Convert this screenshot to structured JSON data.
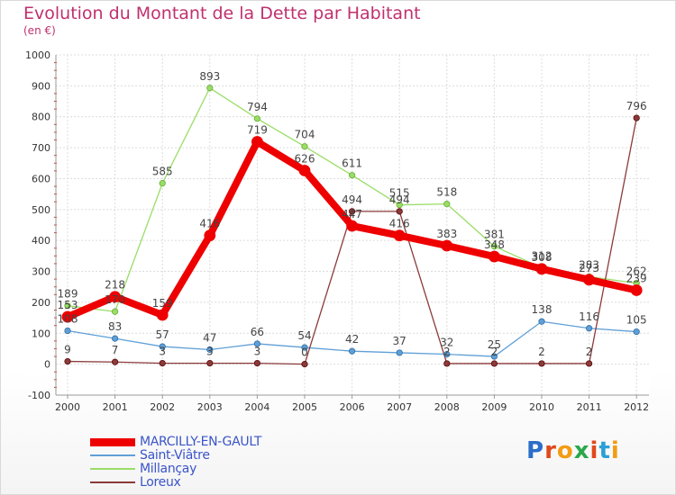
{
  "header": {
    "title": "Evolution du Montant de la Dette par Habitant",
    "subtitle": "(en €)"
  },
  "logo": {
    "text": "Proxiti"
  },
  "chart_data": {
    "type": "line",
    "title": "Evolution du Montant de la Dette par Habitant",
    "subtitle": "(en €)",
    "xlabel": "",
    "ylabel": "",
    "x": [
      "2000",
      "2001",
      "2002",
      "2003",
      "2004",
      "2005",
      "2006",
      "2007",
      "2008",
      "2009",
      "2010",
      "2011",
      "2012"
    ],
    "ylim": [
      -100,
      1000
    ],
    "yticks": [
      "-100",
      "0",
      "100",
      "200",
      "300",
      "400",
      "500",
      "600",
      "700",
      "800",
      "900",
      "1000"
    ],
    "grid": true,
    "legend_position": "bottom-left",
    "series": [
      {
        "name": "MARCILLY-EN-GAULT",
        "color": "#ee0000",
        "width": 8,
        "values": [
          153,
          218,
          159,
          416,
          719,
          626,
          447,
          416,
          383,
          348,
          308,
          273,
          239
        ]
      },
      {
        "name": "Saint-Viâtre",
        "color": "#5f9fd6",
        "width": 1.3,
        "values": [
          108,
          83,
          57,
          47,
          66,
          54,
          42,
          37,
          32,
          25,
          138,
          116,
          105
        ]
      },
      {
        "name": "Millançay",
        "color": "#99dd66",
        "width": 1.3,
        "values": [
          189,
          170,
          585,
          893,
          794,
          704,
          611,
          515,
          518,
          381,
          312,
          283,
          262
        ]
      },
      {
        "name": "Loreux",
        "color": "#8b3a3a",
        "width": 1.3,
        "values": [
          9,
          7,
          3,
          3,
          3,
          0,
          494,
          494,
          2,
          2,
          2,
          2,
          796
        ]
      }
    ]
  }
}
